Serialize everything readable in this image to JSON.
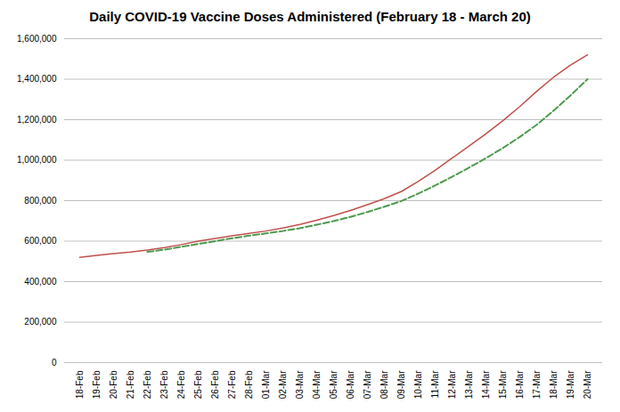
{
  "chart_data": {
    "type": "line",
    "title": "Daily COVID-19 Vaccine Doses Administered (February 18 - March 20)",
    "categories": [
      "18-Feb",
      "19-Feb",
      "20-Feb",
      "21-Feb",
      "22-Feb",
      "23-Feb",
      "24-Feb",
      "25-Feb",
      "26-Feb",
      "27-Feb",
      "28-Feb",
      "01-Mar",
      "02-Mar",
      "03-Mar",
      "04-Mar",
      "05-Mar",
      "06-Mar",
      "07-Mar",
      "08-Mar",
      "09-Mar",
      "10-Mar",
      "11-Mar",
      "12-Mar",
      "13-Mar",
      "14-Mar",
      "15-Mar",
      "16-Mar",
      "17-Mar",
      "18-Mar",
      "19-Mar",
      "20-Mar"
    ],
    "series": [
      {
        "color": "#c0504d",
        "line_style": "solid",
        "values": [
          520000,
          530000,
          538000,
          546000,
          556000,
          568000,
          583000,
          600000,
          613000,
          626000,
          638000,
          650000,
          665000,
          682000,
          703000,
          726000,
          752000,
          780000,
          810000,
          845000,
          895000,
          950000,
          1010000,
          1070000,
          1130000,
          1195000,
          1265000,
          1340000,
          1410000,
          1470000,
          1520000
        ]
      },
      {
        "color": "#4e9a4e",
        "line_style": "dashed",
        "values": [
          null,
          null,
          null,
          null,
          547000,
          558000,
          572000,
          586000,
          600000,
          614000,
          627000,
          638000,
          650000,
          664000,
          681000,
          699000,
          720000,
          744000,
          770000,
          798000,
          835000,
          875000,
          918000,
          963000,
          1010000,
          1060000,
          1115000,
          1175000,
          1245000,
          1320000,
          1400000
        ]
      }
    ],
    "ylim": [
      0,
      1600000
    ],
    "yticks": [
      0,
      {
        "value": 200000,
        "label": "200,000"
      },
      {
        "value": 400000,
        "label": "400,000"
      },
      {
        "value": 600000,
        "label": "600,000"
      },
      {
        "value": 800000,
        "label": "800,000"
      },
      {
        "value": 1000000,
        "label": "1,000,000"
      },
      {
        "value": 1200000,
        "label": "1,200,000"
      },
      {
        "value": 1400000,
        "label": "1,400,000"
      },
      {
        "value": 1600000,
        "label": "1,600,000"
      }
    ],
    "grid": true
  }
}
